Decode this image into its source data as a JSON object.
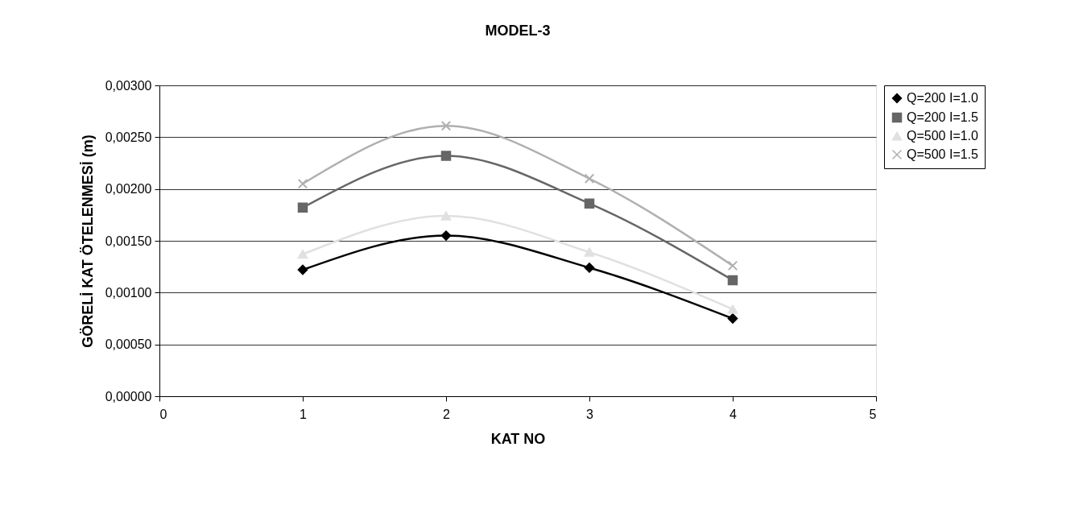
{
  "chart_data": {
    "type": "line",
    "title": "MODEL-3",
    "xlabel": "KAT NO",
    "ylabel": "GÖRELİ KAT ÖTELENMESİ (m)",
    "x": [
      1,
      2,
      3,
      4
    ],
    "series": [
      {
        "name": "Q=200 I=1.0",
        "color": "#000000",
        "marker": "diamond",
        "values": [
          0.00122,
          0.00155,
          0.00124,
          0.00075
        ]
      },
      {
        "name": "Q=200 I=1.5",
        "color": "#666666",
        "marker": "square",
        "values": [
          0.00182,
          0.00232,
          0.00186,
          0.00112
        ]
      },
      {
        "name": "Q=500 I=1.0",
        "color": "#e0e0e0",
        "marker": "triangle",
        "values": [
          0.00137,
          0.00174,
          0.00139,
          0.00084
        ]
      },
      {
        "name": "Q=500 I=1.5",
        "color": "#b0b0b0",
        "marker": "cross",
        "values": [
          0.00205,
          0.00261,
          0.0021,
          0.00126
        ]
      }
    ],
    "xlim": [
      0,
      5
    ],
    "xticks": [
      0,
      1,
      2,
      3,
      4,
      5
    ],
    "ylim": [
      0,
      0.003
    ],
    "yticks": [
      {
        "value": 0,
        "label": "0,00000"
      },
      {
        "value": 0.0005,
        "label": "0,00050"
      },
      {
        "value": 0.001,
        "label": "0,00100"
      },
      {
        "value": 0.0015,
        "label": "0,00150"
      },
      {
        "value": 0.002,
        "label": "0,00200"
      },
      {
        "value": 0.0025,
        "label": "0,00250"
      },
      {
        "value": 0.003,
        "label": "0,00300"
      }
    ],
    "grid": "y",
    "legend": "right",
    "line_style": "solid"
  }
}
